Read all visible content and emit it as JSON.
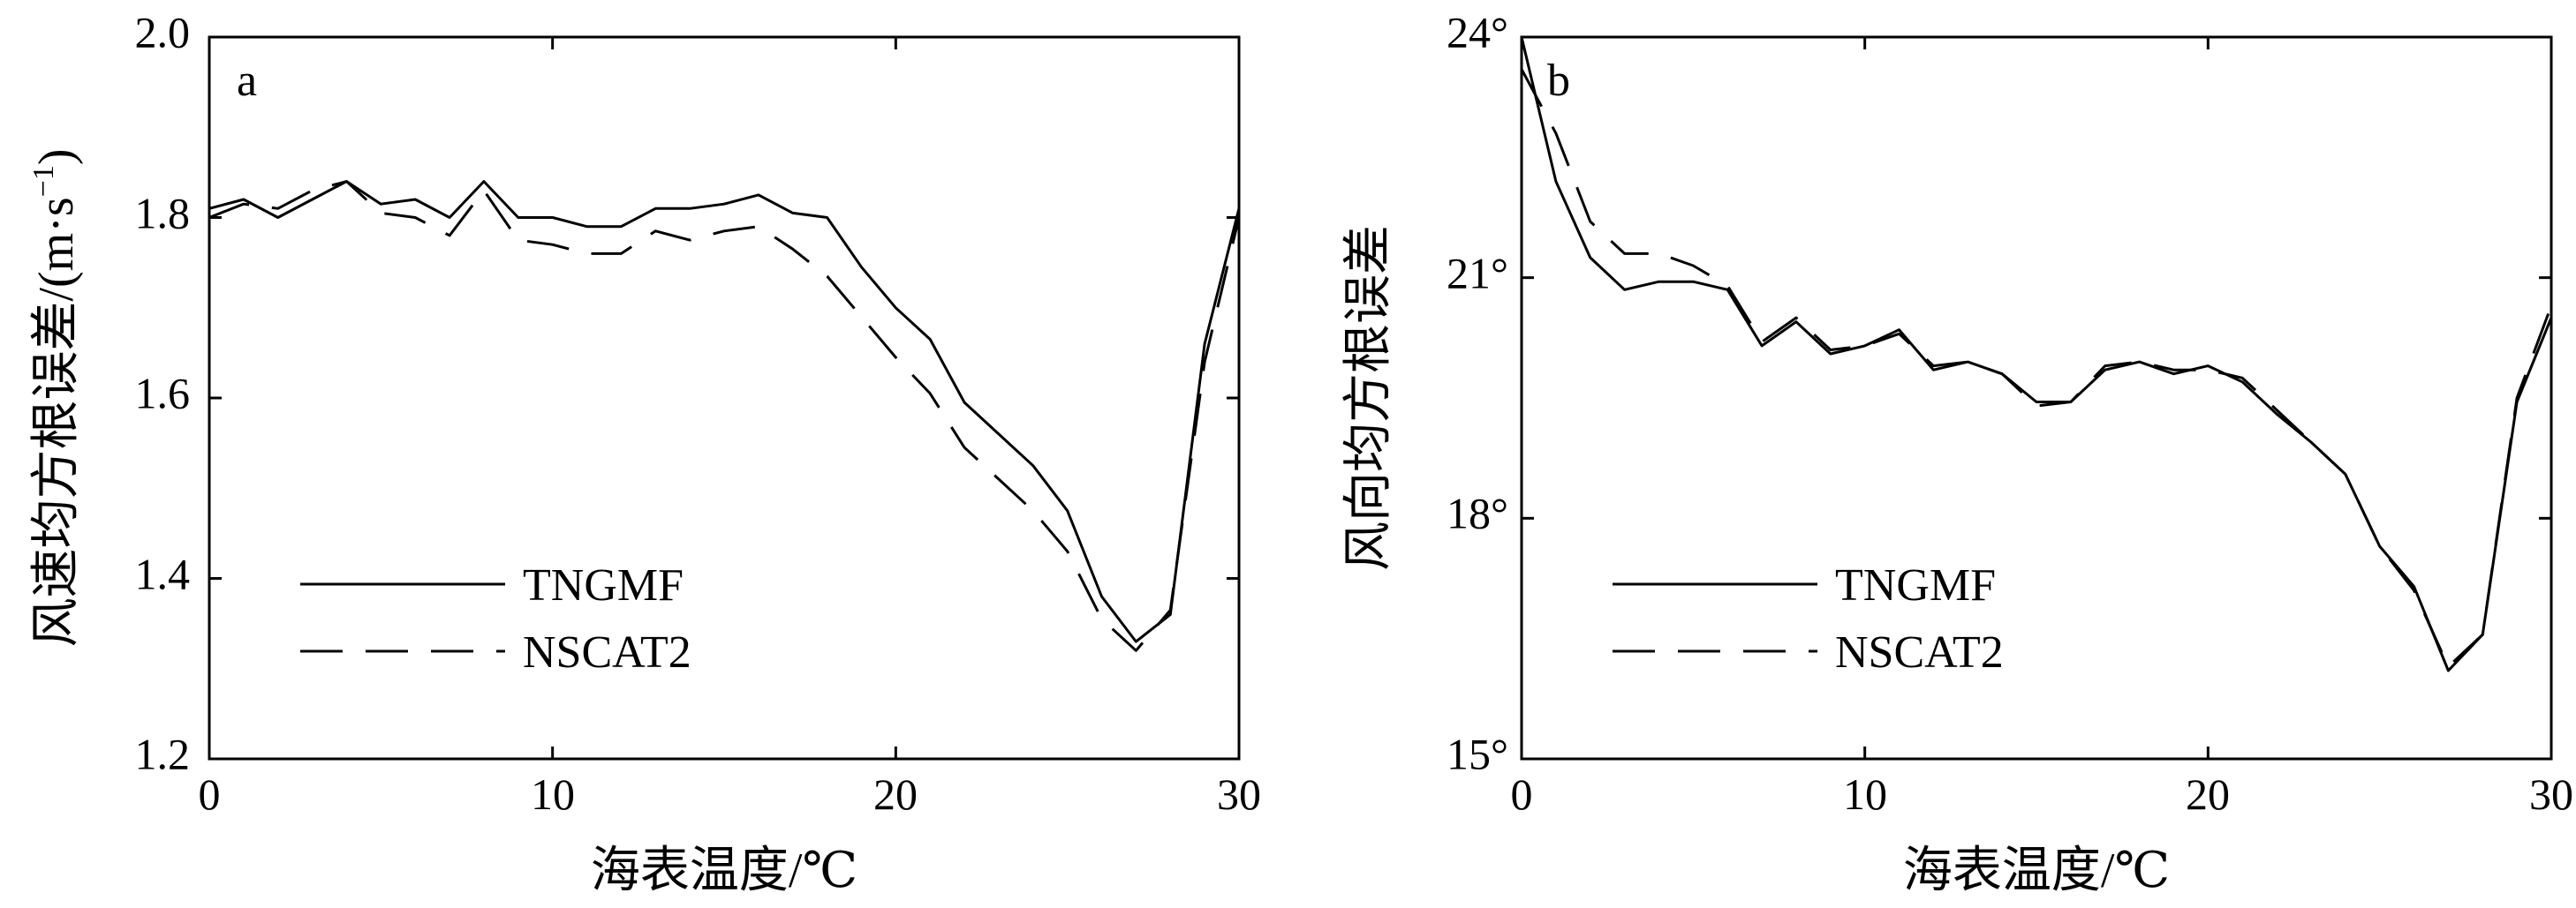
{
  "chart_data": [
    {
      "type": "line",
      "panel_label": "a",
      "xlabel": "海表温度/℃",
      "ylabel": "风速均方根误差/(m·s⁻¹)",
      "ylabel_main": "风速均方根误差/(m·s",
      "ylabel_sup": "−1",
      "ylabel_close": ")",
      "xlim": [
        0,
        30
      ],
      "ylim": [
        1.2,
        2.0
      ],
      "xticks": [
        0,
        10,
        20,
        30
      ],
      "xtick_labels": [
        "0",
        "10",
        "20",
        "30"
      ],
      "yticks": [
        1.2,
        1.4,
        1.6,
        1.8,
        2.0
      ],
      "ytick_labels": [
        "1.2",
        "1.4",
        "1.6",
        "1.8",
        "2.0"
      ],
      "grid": false,
      "legend_position": "bottom-left",
      "x": [
        0,
        1,
        2,
        3,
        4,
        5,
        6,
        7,
        8,
        9,
        10,
        11,
        12,
        13,
        14,
        15,
        16,
        17,
        18,
        19,
        20,
        21,
        22,
        23,
        24,
        25,
        26,
        27,
        28,
        29,
        30
      ],
      "series": [
        {
          "name": "TNGMF",
          "style": "solid",
          "values": [
            1.81,
            1.82,
            1.8,
            1.82,
            1.84,
            1.815,
            1.82,
            1.8,
            1.84,
            1.8,
            1.8,
            1.79,
            1.79,
            1.81,
            1.81,
            1.815,
            1.825,
            1.805,
            1.8,
            1.745,
            1.7,
            1.665,
            1.595,
            1.56,
            1.525,
            1.475,
            1.38,
            1.33,
            1.36,
            1.66,
            1.81
          ]
        },
        {
          "name": "NSCAT2",
          "style": "dashed",
          "values": [
            1.8,
            1.815,
            1.81,
            1.83,
            1.84,
            1.805,
            1.8,
            1.78,
            1.83,
            1.775,
            1.77,
            1.76,
            1.76,
            1.785,
            1.775,
            1.785,
            1.79,
            1.765,
            1.735,
            1.69,
            1.645,
            1.605,
            1.545,
            1.51,
            1.475,
            1.43,
            1.355,
            1.32,
            1.365,
            1.64,
            1.8
          ]
        }
      ]
    },
    {
      "type": "line",
      "panel_label": "b",
      "xlabel": "海表温度/℃",
      "ylabel": "风向均方根误差",
      "xlim": [
        0,
        30
      ],
      "ylim": [
        15,
        24
      ],
      "xticks": [
        0,
        10,
        20,
        30
      ],
      "xtick_labels": [
        "0",
        "10",
        "20",
        "30"
      ],
      "yticks": [
        15,
        18,
        21,
        24
      ],
      "ytick_labels": [
        "15°",
        "18°",
        "21°",
        "24°"
      ],
      "grid": false,
      "legend_position": "bottom-left",
      "x": [
        0,
        1,
        2,
        3,
        4,
        5,
        6,
        7,
        8,
        9,
        10,
        11,
        12,
        13,
        14,
        15,
        16,
        17,
        18,
        19,
        20,
        21,
        22,
        23,
        24,
        25,
        26,
        27,
        28,
        29,
        30
      ],
      "series": [
        {
          "name": "TNGMF",
          "style": "solid",
          "values": [
            24.0,
            22.2,
            21.25,
            20.85,
            20.95,
            20.95,
            20.85,
            20.15,
            20.45,
            20.05,
            20.15,
            20.35,
            19.85,
            19.95,
            19.8,
            19.45,
            19.45,
            19.85,
            19.95,
            19.8,
            19.9,
            19.7,
            19.3,
            18.95,
            18.55,
            17.65,
            17.15,
            16.1,
            16.55,
            19.45,
            20.5
          ]
        },
        {
          "name": "NSCAT2",
          "style": "dashed",
          "values": [
            23.6,
            22.8,
            21.7,
            21.3,
            21.3,
            21.15,
            20.9,
            20.2,
            20.5,
            20.1,
            20.15,
            20.3,
            19.9,
            19.95,
            19.8,
            19.4,
            19.45,
            19.9,
            19.95,
            19.85,
            19.85,
            19.75,
            19.35,
            18.95,
            18.55,
            17.65,
            17.1,
            16.15,
            16.55,
            19.5,
            20.65
          ]
        }
      ]
    }
  ]
}
